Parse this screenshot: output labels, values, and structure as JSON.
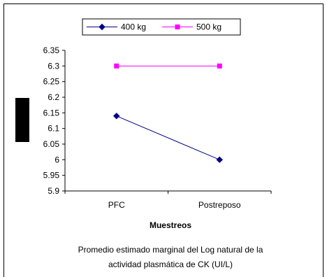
{
  "chart_data": {
    "type": "line",
    "categories": [
      "PFC",
      "Postreposo"
    ],
    "series": [
      {
        "name": "400 kg",
        "values": [
          6.14,
          6.0
        ],
        "color": "#000080",
        "marker": "diamond"
      },
      {
        "name": "500 kg",
        "values": [
          6.3,
          6.3
        ],
        "color": "#ff00ff",
        "marker": "square"
      }
    ],
    "ylim": [
      5.9,
      6.35
    ],
    "yticks": [
      "6.35",
      "6.3",
      "6.25",
      "6.2",
      "6.15",
      "6.1",
      "6.05",
      "6",
      "5.95",
      "5.9"
    ],
    "xlabel": "Muestreos",
    "ylabel": "",
    "legend_position": "top",
    "grid": false,
    "footnote": [
      "Promedio estimado marginal del Log natural de la",
      "actividad plasmática de CK (UI/L)"
    ]
  },
  "colors": {
    "ylabel_block": "#000000",
    "axis": "#000000"
  }
}
